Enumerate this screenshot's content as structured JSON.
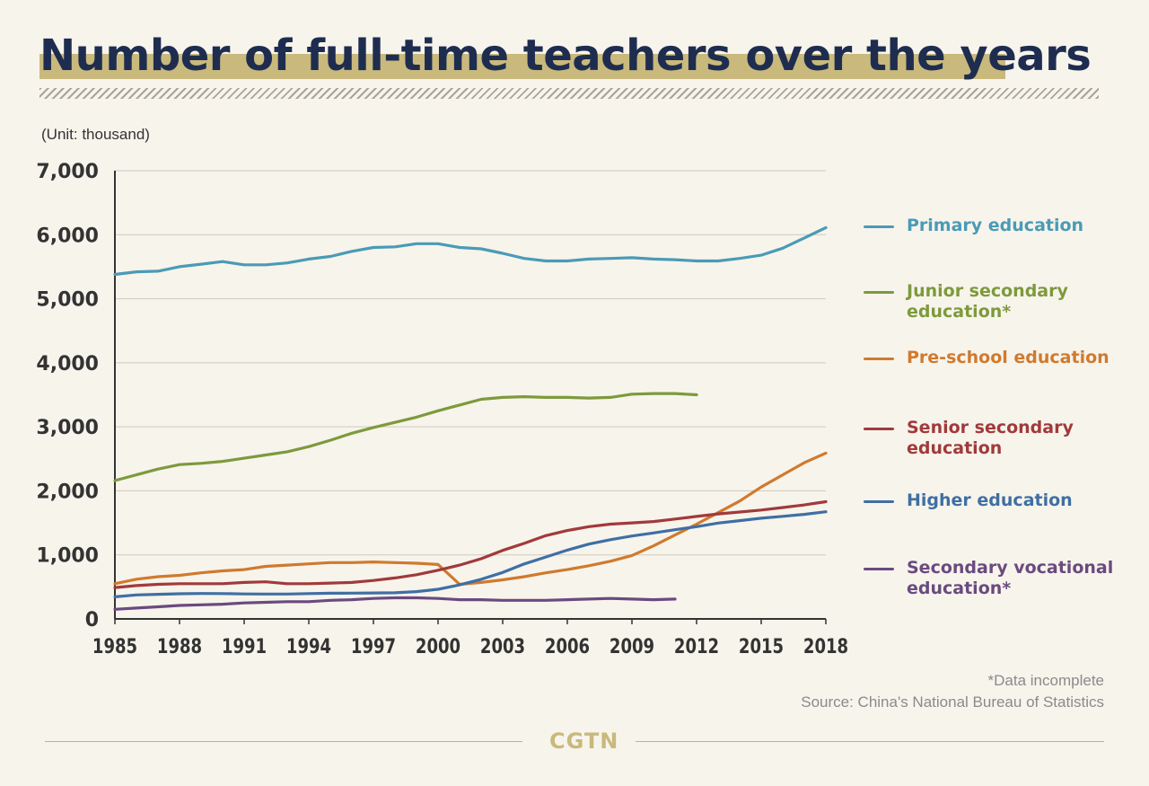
{
  "title": "Number of full-time teachers over the years",
  "unit_label": "(Unit: thousand)",
  "notes": {
    "incomplete": "*Data incomplete",
    "source": "Source: China's National Bureau of Statistics"
  },
  "brand": "CGTN",
  "colors": {
    "background": "#f7f4ec",
    "title_text": "#1e2d4f",
    "title_highlight": "#c9b97c",
    "brand": "#c9b97c"
  },
  "chart_data": {
    "type": "line",
    "title": "Number of full-time teachers over the years",
    "ylabel": "(Unit: thousand)",
    "xlabel": "",
    "xlim": [
      1985,
      2018
    ],
    "ylim": [
      0,
      7000
    ],
    "grid": true,
    "legend_position": "right",
    "x_ticks": [
      1985,
      1988,
      1991,
      1994,
      1997,
      2000,
      2003,
      2006,
      2009,
      2012,
      2015,
      2018
    ],
    "y_ticks": [
      0,
      1000,
      2000,
      3000,
      4000,
      5000,
      6000,
      7000
    ],
    "x_tick_labels": [
      "1985",
      "1988",
      "1991",
      "1994",
      "1997",
      "2000",
      "2003",
      "2006",
      "2009",
      "2012",
      "2015",
      "2018"
    ],
    "y_tick_labels": [
      "0",
      "1,000",
      "2,000",
      "3,000",
      "4,000",
      "5,000",
      "6,000",
      "7,000"
    ],
    "series": [
      {
        "name": "Primary education",
        "color": "#4a9bb5",
        "x": [
          1985,
          1986,
          1987,
          1988,
          1989,
          1990,
          1991,
          1992,
          1993,
          1994,
          1995,
          1996,
          1997,
          1998,
          1999,
          2000,
          2001,
          2002,
          2003,
          2004,
          2005,
          2006,
          2007,
          2008,
          2009,
          2010,
          2011,
          2012,
          2013,
          2014,
          2015,
          2016,
          2017,
          2018
        ],
        "values": [
          5380,
          5420,
          5430,
          5500,
          5540,
          5580,
          5530,
          5530,
          5560,
          5620,
          5660,
          5740,
          5800,
          5810,
          5860,
          5860,
          5800,
          5780,
          5710,
          5630,
          5590,
          5590,
          5620,
          5630,
          5640,
          5620,
          5610,
          5590,
          5590,
          5630,
          5680,
          5790,
          5950,
          6110
        ]
      },
      {
        "name": "Junior secondary education*",
        "color": "#7d9a3c",
        "x": [
          1985,
          1986,
          1987,
          1988,
          1989,
          1990,
          1991,
          1992,
          1993,
          1994,
          1995,
          1996,
          1997,
          1998,
          1999,
          2000,
          2001,
          2002,
          2003,
          2004,
          2005,
          2006,
          2007,
          2008,
          2009,
          2010,
          2011,
          2012
        ],
        "values": [
          2160,
          2250,
          2340,
          2410,
          2430,
          2460,
          2510,
          2560,
          2610,
          2690,
          2790,
          2900,
          2990,
          3070,
          3150,
          3250,
          3340,
          3430,
          3460,
          3470,
          3460,
          3460,
          3450,
          3460,
          3510,
          3520,
          3520,
          3500
        ]
      },
      {
        "name": "Pre-school education",
        "color": "#d07a2e",
        "x": [
          1985,
          1986,
          1987,
          1988,
          1989,
          1990,
          1991,
          1992,
          1993,
          1994,
          1995,
          1996,
          1997,
          1998,
          1999,
          2000,
          2001,
          2002,
          2003,
          2004,
          2005,
          2006,
          2007,
          2008,
          2009,
          2010,
          2011,
          2012,
          2013,
          2014,
          2015,
          2016,
          2017,
          2018
        ],
        "values": [
          550,
          620,
          660,
          680,
          720,
          750,
          770,
          820,
          840,
          860,
          880,
          880,
          890,
          880,
          870,
          850,
          540,
          570,
          610,
          660,
          720,
          770,
          830,
          900,
          990,
          1140,
          1310,
          1480,
          1660,
          1840,
          2060,
          2250,
          2440,
          2590
        ]
      },
      {
        "name": "Senior secondary education",
        "color": "#a13a3a",
        "x": [
          1985,
          1986,
          1987,
          1988,
          1989,
          1990,
          1991,
          1992,
          1993,
          1994,
          1995,
          1996,
          1997,
          1998,
          1999,
          2000,
          2001,
          2002,
          2003,
          2004,
          2005,
          2006,
          2007,
          2008,
          2009,
          2010,
          2011,
          2012,
          2013,
          2014,
          2015,
          2016,
          2017,
          2018
        ],
        "values": [
          490,
          520,
          540,
          550,
          550,
          550,
          570,
          580,
          550,
          550,
          560,
          570,
          600,
          640,
          690,
          760,
          840,
          940,
          1070,
          1180,
          1300,
          1380,
          1440,
          1480,
          1500,
          1520,
          1560,
          1600,
          1640,
          1670,
          1700,
          1740,
          1780,
          1830
        ]
      },
      {
        "name": "Higher education",
        "color": "#3f6fa3",
        "x": [
          1985,
          1986,
          1987,
          1988,
          1989,
          1990,
          1991,
          1992,
          1993,
          1994,
          1995,
          1996,
          1997,
          1998,
          1999,
          2000,
          2001,
          2002,
          2003,
          2004,
          2005,
          2006,
          2007,
          2008,
          2009,
          2010,
          2011,
          2012,
          2013,
          2014,
          2015,
          2016,
          2017,
          2018
        ],
        "values": [
          345,
          375,
          385,
          393,
          397,
          395,
          390,
          388,
          388,
          396,
          401,
          403,
          405,
          408,
          426,
          463,
          532,
          618,
          725,
          858,
          966,
          1075,
          1169,
          1237,
          1295,
          1343,
          1393,
          1440,
          1497,
          1535,
          1573,
          1602,
          1633,
          1673
        ]
      },
      {
        "name": "Secondary vocational education*",
        "color": "#6a4a7f",
        "x": [
          1985,
          1986,
          1987,
          1988,
          1989,
          1990,
          1991,
          1992,
          1993,
          1994,
          1995,
          1996,
          1997,
          1998,
          1999,
          2000,
          2001,
          2002,
          2003,
          2004,
          2005,
          2006,
          2007,
          2008,
          2009,
          2010,
          2011
        ],
        "values": [
          150,
          170,
          190,
          210,
          220,
          230,
          250,
          260,
          270,
          270,
          290,
          300,
          320,
          330,
          330,
          320,
          300,
          300,
          290,
          290,
          290,
          300,
          310,
          320,
          310,
          300,
          310
        ]
      }
    ]
  }
}
